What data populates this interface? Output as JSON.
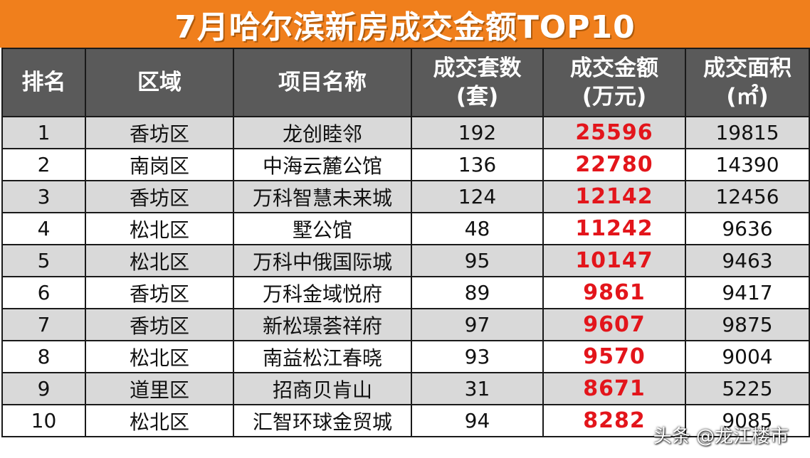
{
  "chart_data": {
    "type": "table",
    "title": "7月哈尔滨新房成交金额TOP10",
    "columns": [
      {
        "key": "rank",
        "line1": "排名",
        "line2": ""
      },
      {
        "key": "district",
        "line1": "区域",
        "line2": ""
      },
      {
        "key": "project",
        "line1": "项目名称",
        "line2": ""
      },
      {
        "key": "units",
        "line1": "成交套数",
        "line2": "(套)"
      },
      {
        "key": "amount",
        "line1": "成交金额",
        "line2": "(万元)"
      },
      {
        "key": "area",
        "line1": "成交面积",
        "line2": "(㎡)"
      }
    ],
    "rows": [
      {
        "rank": "1",
        "district": "香坊区",
        "project": "龙创睦邻",
        "units": 192,
        "amount": 25596,
        "area": 19815
      },
      {
        "rank": "2",
        "district": "南岗区",
        "project": "中海云麓公馆",
        "units": 136,
        "amount": 22780,
        "area": 14390
      },
      {
        "rank": "3",
        "district": "香坊区",
        "project": "万科智慧未来城",
        "units": 124,
        "amount": 12142,
        "area": 12456
      },
      {
        "rank": "4",
        "district": "松北区",
        "project": "墅公馆",
        "units": 48,
        "amount": 11242,
        "area": 9636
      },
      {
        "rank": "5",
        "district": "松北区",
        "project": "万科中俄国际城",
        "units": 95,
        "amount": 10147,
        "area": 9463
      },
      {
        "rank": "6",
        "district": "香坊区",
        "project": "万科金域悦府",
        "units": 89,
        "amount": 9861,
        "area": 9417
      },
      {
        "rank": "7",
        "district": "香坊区",
        "project": "新松璟荟祥府",
        "units": 97,
        "amount": 9607,
        "area": 9875
      },
      {
        "rank": "8",
        "district": "松北区",
        "project": "南益松江春晓",
        "units": 93,
        "amount": 9570,
        "area": 9004
      },
      {
        "rank": "9",
        "district": "道里区",
        "project": "招商贝肯山",
        "units": 31,
        "amount": 8671,
        "area": 5225
      },
      {
        "rank": "10",
        "district": "松北区",
        "project": "汇智环球金贸城",
        "units": 94,
        "amount": 8282,
        "area": 9085
      }
    ]
  },
  "watermark": "头条 @龙江楼市",
  "colors": {
    "title_bg": "#f07f1c",
    "header_bg": "#5a5a5a",
    "row_alt": "#d9d9d9",
    "amount_text": "#e3151b"
  }
}
